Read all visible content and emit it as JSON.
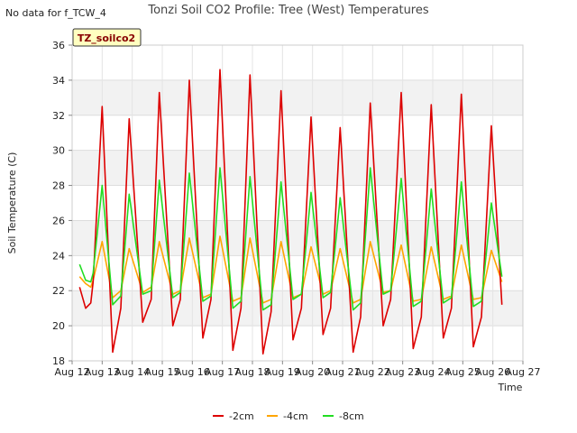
{
  "chart_data": {
    "type": "line",
    "title": "Tonzi Soil CO2 Profile: Tree (West) Temperatures",
    "corner_note": "No data for f_TCW_4",
    "badge": "TZ_soilco2",
    "xlabel": "Time",
    "ylabel": "Soil Temperature (C)",
    "x_ticks": [
      "Aug 12",
      "Aug 13",
      "Aug 14",
      "Aug 15",
      "Aug 16",
      "Aug 17",
      "Aug 18",
      "Aug 19",
      "Aug 20",
      "Aug 21",
      "Aug 22",
      "Aug 23",
      "Aug 24",
      "Aug 25",
      "Aug 26",
      "Aug 27"
    ],
    "xlim": [
      12,
      27
    ],
    "ylim": [
      18,
      36
    ],
    "y_ticks": [
      18,
      20,
      22,
      24,
      26,
      28,
      30,
      32,
      34,
      36
    ],
    "grid": "horizontal bands",
    "legend": "bottom-center",
    "series": [
      {
        "name": "-2cm",
        "color": "#dd0000",
        "x": [
          12.25,
          12.45,
          12.62,
          12.7,
          13.0,
          13.35,
          13.62,
          13.9,
          14.35,
          14.63,
          14.9,
          15.35,
          15.6,
          15.9,
          16.35,
          16.62,
          16.92,
          17.35,
          17.62,
          17.92,
          18.35,
          18.62,
          18.95,
          19.35,
          19.63,
          19.95,
          20.35,
          20.6,
          20.92,
          21.35,
          21.6,
          21.92,
          22.35,
          22.6,
          22.95,
          23.35,
          23.62,
          23.95,
          24.35,
          24.62,
          24.95,
          25.35,
          25.62,
          25.95,
          26.3
        ],
        "y": [
          22.2,
          21.0,
          21.3,
          22.5,
          32.5,
          18.5,
          21.0,
          31.8,
          20.2,
          21.5,
          33.3,
          20.0,
          21.5,
          34.0,
          19.3,
          21.5,
          34.6,
          18.6,
          21.0,
          34.3,
          18.4,
          20.8,
          33.4,
          19.2,
          21.0,
          31.9,
          19.5,
          21.0,
          31.3,
          18.5,
          20.5,
          32.7,
          20.0,
          21.5,
          33.3,
          18.7,
          20.5,
          32.6,
          19.3,
          21.0,
          33.2,
          18.8,
          20.5,
          31.4,
          21.2
        ]
      },
      {
        "name": "-4cm",
        "color": "#ffa500",
        "x": [
          12.25,
          12.45,
          12.62,
          12.7,
          13.0,
          13.35,
          13.62,
          13.9,
          14.35,
          14.63,
          14.9,
          15.35,
          15.6,
          15.9,
          16.35,
          16.62,
          16.92,
          17.35,
          17.62,
          17.92,
          18.35,
          18.62,
          18.95,
          19.35,
          19.63,
          19.95,
          20.35,
          20.6,
          20.92,
          21.35,
          21.6,
          21.92,
          22.35,
          22.6,
          22.95,
          23.35,
          23.62,
          23.95,
          24.35,
          24.62,
          24.95,
          25.35,
          25.62,
          25.95,
          26.3
        ],
        "y": [
          22.8,
          22.4,
          22.2,
          22.6,
          24.8,
          21.6,
          22.0,
          24.4,
          21.9,
          22.2,
          24.8,
          21.8,
          22.0,
          25.0,
          21.6,
          21.8,
          25.1,
          21.4,
          21.6,
          25.0,
          21.3,
          21.5,
          24.8,
          21.6,
          21.8,
          24.5,
          21.8,
          22.0,
          24.4,
          21.3,
          21.5,
          24.8,
          21.9,
          22.0,
          24.6,
          21.4,
          21.5,
          24.5,
          21.5,
          21.7,
          24.6,
          21.5,
          21.6,
          24.3,
          22.5
        ]
      },
      {
        "name": "-8cm",
        "color": "#22dd22",
        "x": [
          12.25,
          12.45,
          12.62,
          12.7,
          13.0,
          13.35,
          13.62,
          13.9,
          14.35,
          14.63,
          14.9,
          15.35,
          15.6,
          15.9,
          16.35,
          16.62,
          16.92,
          17.35,
          17.62,
          17.92,
          18.35,
          18.62,
          18.95,
          19.35,
          19.63,
          19.95,
          20.35,
          20.6,
          20.92,
          21.35,
          21.6,
          21.92,
          22.35,
          22.6,
          22.95,
          23.35,
          23.62,
          23.95,
          24.35,
          24.62,
          24.95,
          25.35,
          25.62,
          25.95,
          26.3
        ],
        "y": [
          23.5,
          22.6,
          22.5,
          23.0,
          28.0,
          21.2,
          21.7,
          27.5,
          21.8,
          22.0,
          28.3,
          21.6,
          21.9,
          28.7,
          21.4,
          21.7,
          29.0,
          21.0,
          21.4,
          28.5,
          20.9,
          21.2,
          28.2,
          21.5,
          21.8,
          27.6,
          21.6,
          21.9,
          27.3,
          20.9,
          21.3,
          29.0,
          21.8,
          22.0,
          28.4,
          21.1,
          21.4,
          27.8,
          21.3,
          21.6,
          28.2,
          21.1,
          21.4,
          27.0,
          22.8
        ]
      }
    ]
  }
}
